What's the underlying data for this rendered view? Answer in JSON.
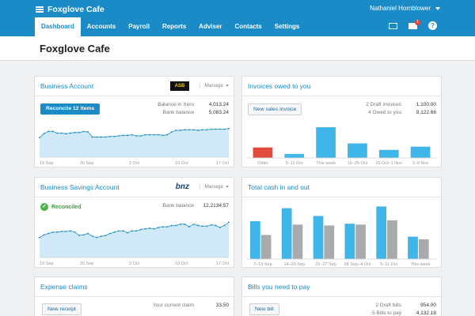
{
  "app": {
    "title": "Foxglove Cafe",
    "user": "Nathaniel Hornblower"
  },
  "nav": {
    "tabs": [
      "Dashboard",
      "Accounts",
      "Payroll",
      "Reports",
      "Adviser",
      "Contacts",
      "Settings"
    ],
    "active": "Dashboard"
  },
  "nav_icons": {
    "mail_badge": "1",
    "help": "?"
  },
  "page": {
    "title": "Foxglove Cafe"
  },
  "business_account": {
    "title": "Business Account",
    "bank_logo": "ASB",
    "manage": "Manage",
    "button": "Reconcile 12 items",
    "rows": [
      {
        "label": "Balance in Xero",
        "value": "4,013.24"
      },
      {
        "label": "Bank balance",
        "value": "5,083.24"
      }
    ],
    "chart": {
      "type": "area",
      "xticks": [
        "19 Sep",
        "26 Sep",
        "3 Oct",
        "10 Oct",
        "17 Oct"
      ],
      "values": [
        3.5,
        4.2,
        4.6,
        4.6,
        4.3,
        4.3,
        4.2,
        4.3,
        4.4,
        4.4,
        4.6,
        4.5,
        3.6,
        3.6,
        3.6,
        3.6,
        3.7,
        3.7,
        3.8,
        3.9,
        3.9,
        4.0,
        3.8,
        3.8,
        4.0,
        4.0,
        4.0,
        4.0,
        3.9,
        4.0,
        4.5,
        4.8,
        4.8,
        4.9,
        4.9,
        4.9,
        4.8,
        4.9,
        4.9,
        5.0,
        5.0,
        5.0,
        5.0,
        5.1
      ]
    }
  },
  "savings_account": {
    "title": "Business Savings Account",
    "bank_logo": "bnz",
    "manage": "Manage",
    "status": "Reconciled",
    "rows": [
      {
        "label": "Bank balance",
        "value": "12,2134.57"
      }
    ],
    "chart": {
      "type": "area",
      "xticks": [
        "19 Sep",
        "26 Sep",
        "3 Oct",
        "10 Oct",
        "17 Oct"
      ],
      "values": [
        3.0,
        3.4,
        3.6,
        3.8,
        3.8,
        3.9,
        3.9,
        4.0,
        3.8,
        3.3,
        3.4,
        3.6,
        3.2,
        3.0,
        3.2,
        3.3,
        3.6,
        3.8,
        4.0,
        4.0,
        3.7,
        4.0,
        4.0,
        4.2,
        4.3,
        4.4,
        4.3,
        4.5,
        4.6,
        4.6,
        4.8,
        4.8,
        5.0,
        5.0,
        4.6,
        5.0,
        4.8,
        4.7,
        4.7,
        4.9,
        4.8,
        4.5,
        4.8,
        5.3
      ]
    }
  },
  "invoices": {
    "title": "Invoices owed to you",
    "button": "New sales invoice",
    "rows": [
      {
        "label": "2 Draft invoices",
        "value": "1,100.00"
      },
      {
        "label": "4 Owed to you",
        "value": "9,122.66"
      }
    ],
    "chart_data": {
      "type": "bar",
      "categories": [
        "Older",
        "5–11 Oct",
        "This week",
        "19–25 Oct",
        "26 Oct–1 Nov",
        "2–8 Nov"
      ],
      "values": [
        13,
        5,
        38,
        18,
        10,
        14
      ],
      "colors": [
        "#e24a3e",
        "#3fb5e8",
        "#3fb5e8",
        "#3fb5e8",
        "#3fb5e8",
        "#3fb5e8"
      ],
      "ylim": [
        0,
        40
      ]
    }
  },
  "cash": {
    "title": "Total cash in and out",
    "chart_data": {
      "type": "bar",
      "categories": [
        "7–13 Sep",
        "14–20 Sep",
        "21–27 Sep",
        "28 Sep–4 Oct",
        "5–11 Oct",
        "This week"
      ],
      "series": [
        {
          "values": [
            44,
            59,
            50,
            41,
            61,
            26
          ],
          "color": "#3fb5e8"
        },
        {
          "values": [
            28,
            40,
            39,
            40,
            45,
            23
          ],
          "color": "#a9aaad"
        }
      ],
      "ylim": [
        0,
        65
      ]
    }
  },
  "expenses": {
    "title": "Expense claims",
    "button": "New receipt",
    "rows": [
      {
        "label": "Your current claim",
        "value": "33.50"
      }
    ]
  },
  "bills": {
    "title": "Bills you need to pay",
    "button": "New bill",
    "rows": [
      {
        "label": "2 Draft bills",
        "value": "954.00"
      },
      {
        "label": "5 Bills to pay",
        "value": "4,132.18"
      }
    ]
  },
  "colors": {
    "brand": "#1a8bc6",
    "area_fill": "#cfe9f7",
    "line": "#3fa6d9"
  }
}
